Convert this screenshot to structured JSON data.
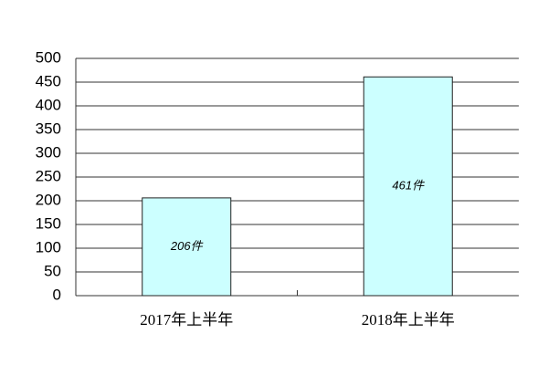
{
  "chart_data": {
    "type": "bar",
    "categories": [
      "2017年上半年",
      "2018年上半年"
    ],
    "values": [
      206,
      461
    ],
    "value_labels": [
      "206件",
      "461件"
    ],
    "color": "#ccffff",
    "ylim": [
      0,
      500
    ],
    "yticks": [
      0,
      50,
      100,
      150,
      200,
      250,
      300,
      350,
      400,
      450,
      500
    ],
    "grid": true
  }
}
